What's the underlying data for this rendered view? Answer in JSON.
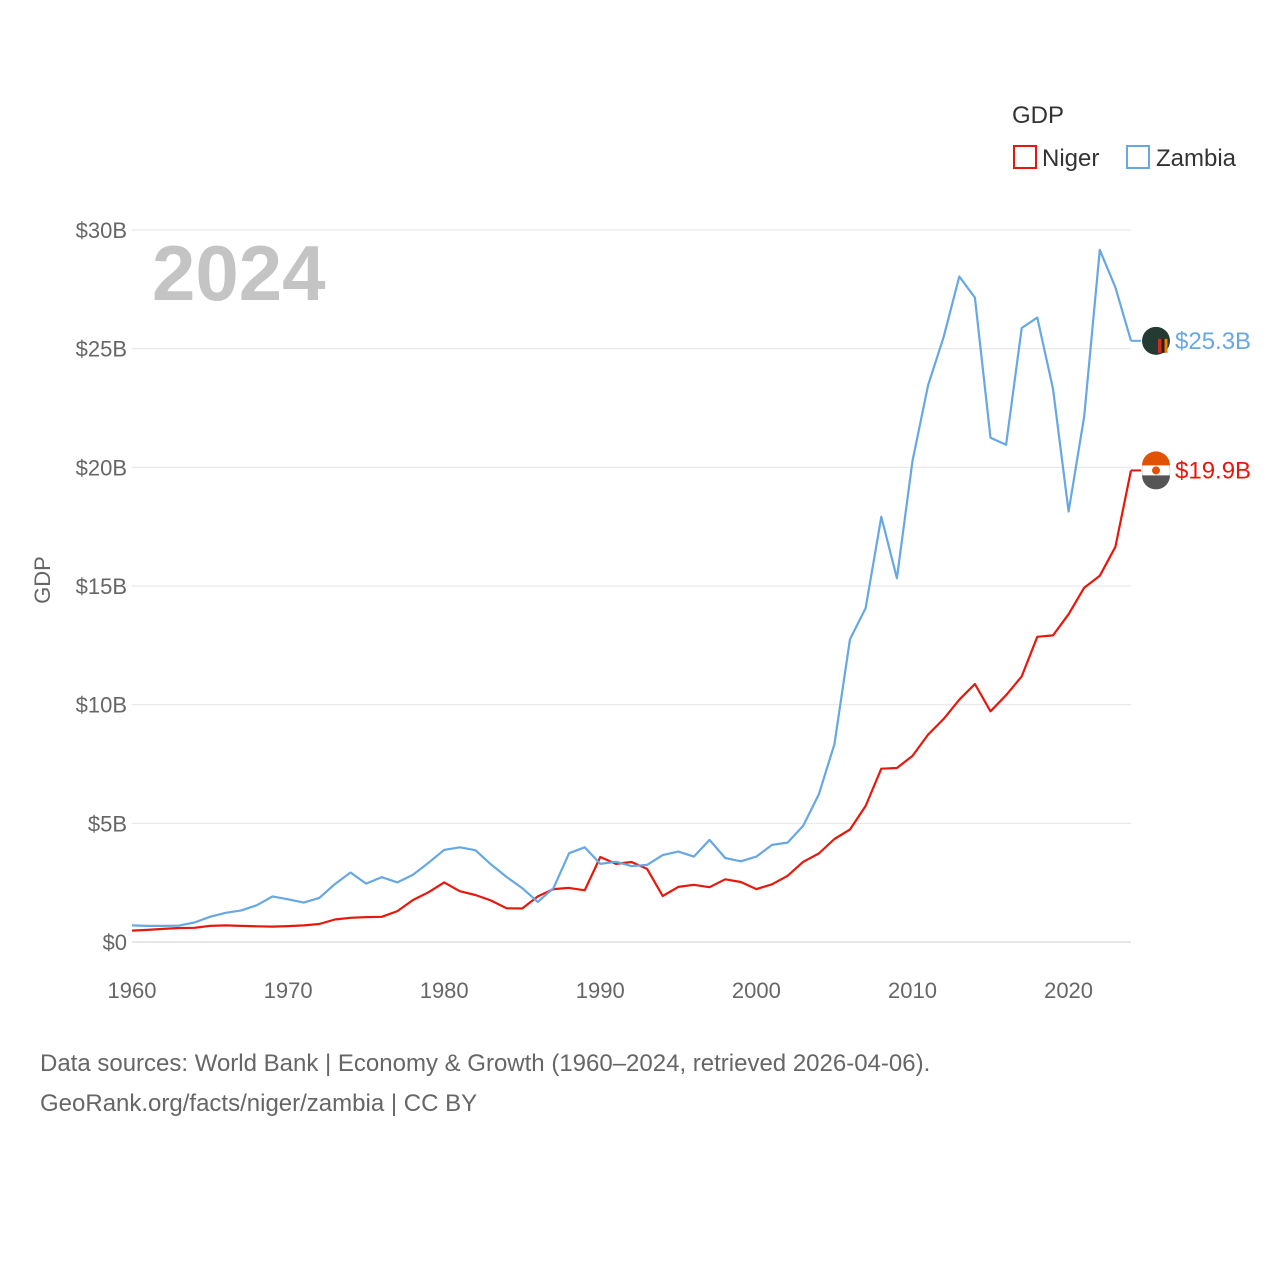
{
  "chart_data": {
    "type": "line",
    "title": "GDP",
    "current_year_label": "2024",
    "ylabel": "GDP",
    "xlabel": "",
    "xlim": [
      1960,
      2024
    ],
    "ylim": [
      0,
      30
    ],
    "x_ticks": [
      {
        "value": 1960,
        "label": "1960"
      },
      {
        "value": 1970,
        "label": "1970"
      },
      {
        "value": 1980,
        "label": "1980"
      },
      {
        "value": 1990,
        "label": "1990"
      },
      {
        "value": 2000,
        "label": "2000"
      },
      {
        "value": 2010,
        "label": "2010"
      },
      {
        "value": 2020,
        "label": "2020"
      }
    ],
    "y_ticks": [
      {
        "value": 0,
        "label": "$0"
      },
      {
        "value": 5,
        "label": "$5B"
      },
      {
        "value": 10,
        "label": "$10B"
      },
      {
        "value": 15,
        "label": "$15B"
      },
      {
        "value": 20,
        "label": "$20B"
      },
      {
        "value": 25,
        "label": "$25B"
      },
      {
        "value": 30,
        "label": "$30B"
      }
    ],
    "legend_position": "top-right",
    "x_start": 1960,
    "series": [
      {
        "name": "Niger",
        "color": "#e8170b",
        "end_label": "$19.9B",
        "values": [
          0.48,
          0.51,
          0.55,
          0.59,
          0.6,
          0.68,
          0.7,
          0.68,
          0.66,
          0.65,
          0.67,
          0.7,
          0.76,
          0.95,
          1.02,
          1.05,
          1.06,
          1.3,
          1.77,
          2.1,
          2.51,
          2.14,
          1.98,
          1.75,
          1.42,
          1.41,
          1.92,
          2.23,
          2.28,
          2.18,
          3.58,
          3.29,
          3.37,
          3.08,
          1.94,
          2.32,
          2.41,
          2.31,
          2.64,
          2.53,
          2.23,
          2.43,
          2.79,
          3.38,
          3.73,
          4.34,
          4.74,
          5.73,
          7.3,
          7.33,
          7.84,
          8.74,
          9.4,
          10.21,
          10.87,
          9.72,
          10.4,
          11.19,
          12.86,
          12.92,
          13.81,
          14.93,
          15.43,
          16.65,
          19.87
        ]
      },
      {
        "name": "Zambia",
        "color": "#67a7e3",
        "end_label": "$25.3B",
        "values": [
          0.7,
          0.68,
          0.68,
          0.69,
          0.82,
          1.06,
          1.23,
          1.33,
          1.55,
          1.92,
          1.8,
          1.66,
          1.86,
          2.44,
          2.93,
          2.46,
          2.73,
          2.51,
          2.83,
          3.34,
          3.88,
          3.99,
          3.87,
          3.27,
          2.74,
          2.27,
          1.69,
          2.27,
          3.74,
          3.99,
          3.29,
          3.38,
          3.2,
          3.25,
          3.66,
          3.81,
          3.6,
          4.3,
          3.54,
          3.4,
          3.6,
          4.09,
          4.19,
          4.9,
          6.22,
          8.33,
          12.76,
          14.06,
          17.91,
          15.33,
          20.27,
          23.46,
          25.5,
          28.04,
          27.15,
          21.25,
          20.95,
          25.87,
          26.31,
          23.31,
          18.14,
          22.15,
          29.16,
          27.58,
          25.33
        ]
      }
    ]
  },
  "footer": {
    "line1": "Data sources: World Bank | Economy & Growth (1960–2024, retrieved 2026-04-06).",
    "line2": "GeoRank.org/facts/niger/zambia | CC BY"
  }
}
